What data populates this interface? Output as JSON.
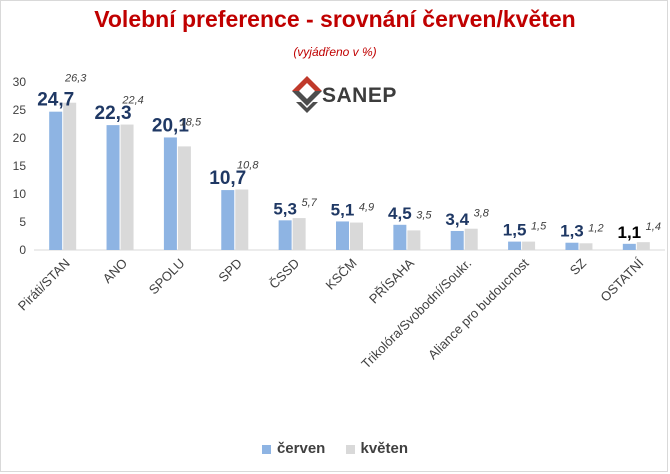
{
  "header": {
    "title": "Volební preference - srovnání červen/květen",
    "subtitle": "(vyjádřeno v %)"
  },
  "logo": {
    "text": "SANEP"
  },
  "colors": {
    "title": "#c00000",
    "cerven": "#8eb4e3",
    "kveten": "#d9d9d9",
    "cerven_label": "#1f3864",
    "ostatni_label": "#000000",
    "kveten_label": "#404040",
    "axis_text": "#404040",
    "logo_red": "#c0392b",
    "logo_gray": "#4d4d4d"
  },
  "chart_data": {
    "type": "bar",
    "categories": [
      "Piráti/STAN",
      "ANO",
      "SPOLU",
      "SPD",
      "ČSSD",
      "KSČM",
      "PŘÍSAHA",
      "Trikolóra/Svobodní/Soukr.",
      "Aliance pro budoucnost",
      "SZ",
      "OSTATNÍ"
    ],
    "series": [
      {
        "name": "červen",
        "values": [
          24.7,
          22.3,
          20.1,
          10.7,
          5.3,
          5.1,
          4.5,
          3.4,
          1.5,
          1.3,
          1.1
        ]
      },
      {
        "name": "květen",
        "values": [
          26.3,
          22.4,
          18.5,
          10.8,
          5.7,
          4.9,
          3.5,
          3.8,
          1.5,
          1.2,
          1.4
        ]
      }
    ],
    "yticks": [
      0,
      5,
      10,
      15,
      20,
      25,
      30
    ],
    "ylim": [
      0,
      30
    ],
    "grid": false,
    "legend_position": "bottom"
  }
}
